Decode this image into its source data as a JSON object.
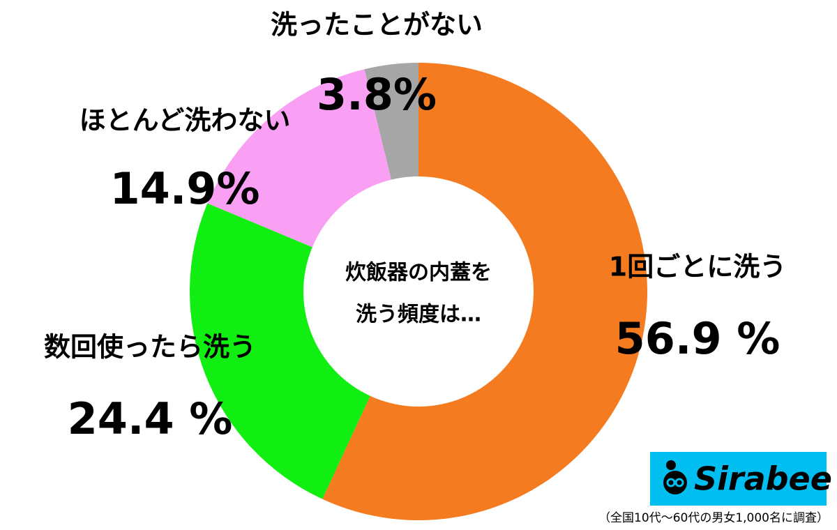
{
  "chart_data": {
    "type": "donut",
    "center_text": [
      "炊飯器の内蓋を",
      "洗う頻度は…"
    ],
    "categories": [
      "1回ごとに洗う",
      "数回使ったら洗う",
      "ほとんど洗わない",
      "洗ったことがない"
    ],
    "values": [
      56.9,
      24.4,
      14.9,
      3.8
    ],
    "value_labels": [
      "56.9 %",
      "24.4 %",
      "14.9%",
      "3.8%"
    ],
    "colors": [
      "#f47b20",
      "#11ee11",
      "#f9a0f5",
      "#a6a6a6"
    ],
    "note": "（全国10代〜60代の男女1,000名に調査）",
    "logo": "Sirabee"
  }
}
